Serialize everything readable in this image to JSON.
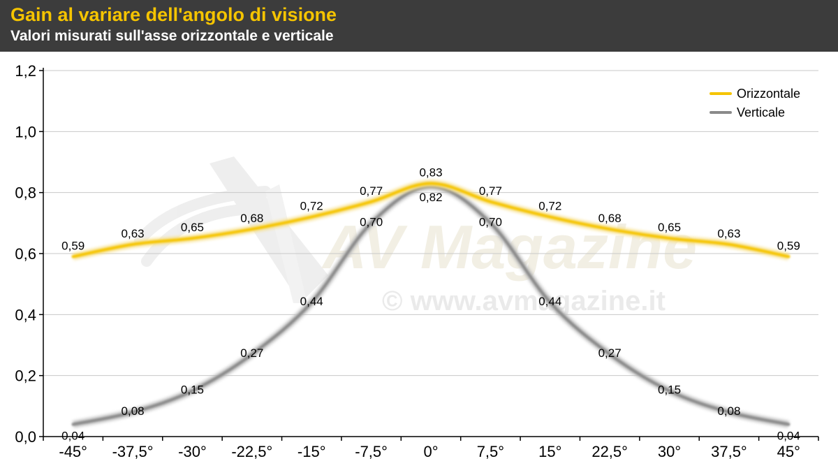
{
  "header": {
    "title": "Gain al variare dell'angolo di visione",
    "subtitle": "Valori misurati sull'asse orizzontale e verticale"
  },
  "watermark": {
    "logo_text": "AV Magazine",
    "url_text": "© www.avmagazine.it"
  },
  "colors": {
    "header_bg": "#3c3c3c",
    "title": "#f5c400",
    "orizzontale": "#f5c400",
    "verticale": "#8a8a8a",
    "grid": "#c8c8c8"
  },
  "chart_data": {
    "type": "line",
    "title": "Gain al variare dell'angolo di visione",
    "subtitle": "Valori misurati sull'asse orizzontale e verticale",
    "xlabel": "",
    "ylabel": "",
    "categories": [
      "-45°",
      "-37,5°",
      "-30°",
      "-22,5°",
      "-15°",
      "-7,5°",
      "0°",
      "7,5°",
      "15°",
      "22,5°",
      "30°",
      "37,5°",
      "45°"
    ],
    "ylim": [
      0,
      1.2
    ],
    "yticks": [
      "0,0",
      "0,2",
      "0,4",
      "0,6",
      "0,8",
      "1,0",
      "1,2"
    ],
    "grid": true,
    "legend_position": "top-right",
    "series": [
      {
        "name": "Orizzontale",
        "values": [
          0.59,
          0.63,
          0.65,
          0.68,
          0.72,
          0.77,
          0.83,
          0.77,
          0.72,
          0.68,
          0.65,
          0.63,
          0.59
        ],
        "labels": [
          "0,59",
          "0,63",
          "0,65",
          "0,68",
          "0,72",
          "0,77",
          "0,83",
          "0,77",
          "0,72",
          "0,68",
          "0,65",
          "0,63",
          "0,59"
        ]
      },
      {
        "name": "Verticale",
        "values": [
          0.04,
          0.08,
          0.15,
          0.27,
          0.44,
          0.7,
          0.82,
          0.7,
          0.44,
          0.27,
          0.15,
          0.08,
          0.04
        ],
        "labels": [
          "0,04",
          "0,08",
          "0,15",
          "0,27",
          "0,44",
          "0,70",
          "0,82",
          "0,70",
          "0,44",
          "0,27",
          "0,15",
          "0,08",
          "0,04"
        ]
      }
    ]
  }
}
